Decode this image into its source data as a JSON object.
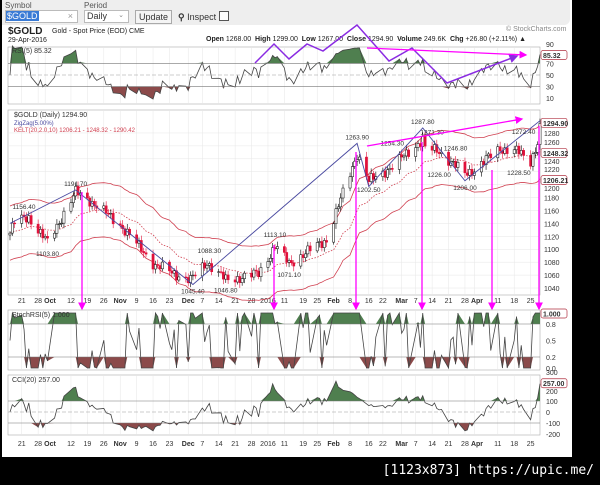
{
  "toolbar": {
    "symbol_label": "Symbol",
    "symbol_value": "$GOLD",
    "period_label": "Period",
    "period_value": "Daily",
    "update_label": "Update",
    "inspect_label": "Inspect",
    "clear_icon": "×"
  },
  "header": {
    "symbol": "$GOLD",
    "name": "Gold - Spot Price (EOD) CME",
    "date": "29-Apr-2016",
    "brand": "© StockCharts.com",
    "open_label": "Open",
    "open": "1268.00",
    "high_label": "High",
    "high": "1299.00",
    "low_label": "Low",
    "low": "1267.00",
    "close_label": "Close",
    "close": "1294.90",
    "volume_label": "Volume",
    "volume": "249.6K",
    "chg_label": "Chg",
    "chg": "+26.80 (+2.11%)"
  },
  "chart_data": {
    "type": "candlestick",
    "period": [
      "2015-09-16",
      "2016-04-29"
    ],
    "price_panel": {
      "legend": [
        "$GOLD (Daily) 1294.90",
        "ZigZag(5.00%)",
        "KELT(20,2.0,10) 1206.21 - 1248.32 - 1290.42"
      ],
      "ylim": [
        1030,
        1300
      ],
      "yticks": [
        1040,
        1060,
        1080,
        1100,
        1120,
        1140,
        1160,
        1180,
        1200,
        1220,
        1240,
        1260,
        1280
      ],
      "value_tags": [
        "1294.90",
        "1248.32",
        "1206.21"
      ],
      "price_pivots": [
        [
          "2015-09-16",
          1125
        ],
        [
          "2015-09-18",
          1142
        ],
        [
          "2015-09-24",
          1150
        ],
        [
          "2015-10-02",
          1110
        ],
        [
          "2015-10-14",
          1188
        ],
        [
          "2015-10-20",
          1176
        ],
        [
          "2015-11-02",
          1138
        ],
        [
          "2015-11-17",
          1075
        ],
        [
          "2015-12-02",
          1052
        ],
        [
          "2015-12-09",
          1080
        ],
        [
          "2015-12-17",
          1052
        ],
        [
          "2015-12-31",
          1062
        ],
        [
          "2016-01-07",
          1105
        ],
        [
          "2016-01-13",
          1078
        ],
        [
          "2016-01-29",
          1115
        ],
        [
          "2016-02-11",
          1248
        ],
        [
          "2016-02-16",
          1205
        ],
        [
          "2016-02-26",
          1228
        ],
        [
          "2016-03-10",
          1270
        ],
        [
          "2016-03-11",
          1256
        ],
        [
          "2016-03-17",
          1252
        ],
        [
          "2016-03-28",
          1216
        ],
        [
          "2016-04-01",
          1224
        ],
        [
          "2016-04-12",
          1256
        ],
        [
          "2016-04-19",
          1252
        ],
        [
          "2016-04-25",
          1236
        ],
        [
          "2016-04-28",
          1266
        ],
        [
          "2016-04-29",
          1294.9
        ]
      ],
      "zigzag": [
        [
          "2015-09-16",
          1140
        ],
        [
          "2015-10-14",
          1191.7
        ],
        [
          "2015-12-03",
          1045.4
        ],
        [
          "2016-02-11",
          1263.9
        ],
        [
          "2016-02-16",
          1197
        ],
        [
          "2016-03-10",
          1287.8
        ],
        [
          "2016-03-28",
          1206
        ],
        [
          "2016-04-29",
          1299
        ]
      ],
      "annotations": [
        [
          "2015-09-18",
          1156.4,
          "1156.40"
        ],
        [
          "2015-10-14",
          1191.7,
          "1191.70"
        ],
        [
          "2015-10-02",
          1103.8,
          "1103.80"
        ],
        [
          "2015-12-10",
          1088.3,
          "1088.30"
        ],
        [
          "2015-12-03",
          1045.4,
          "1045.40"
        ],
        [
          "2015-12-17",
          1046.8,
          "1046.80"
        ],
        [
          "2016-01-07",
          1113.1,
          "1113.10"
        ],
        [
          "2016-01-13",
          1071.1,
          "1071.10"
        ],
        [
          "2016-02-11",
          1263.9,
          "1263.90"
        ],
        [
          "2016-02-26",
          1254.3,
          "1254.30"
        ],
        [
          "2016-02-16",
          1202.5,
          "1202.50"
        ],
        [
          "2016-03-10",
          1287.8,
          "1287.80"
        ],
        [
          "2016-03-14",
          1271.3,
          "1271.30"
        ],
        [
          "2016-03-17",
          1226.0,
          "1226.00"
        ],
        [
          "2016-03-24",
          1246.8,
          "1246.80"
        ],
        [
          "2016-03-28",
          1206.0,
          "1206.00"
        ],
        [
          "2016-04-22",
          1272.4,
          "1272.40"
        ],
        [
          "2016-04-20",
          1228.5,
          "1228.50"
        ]
      ]
    },
    "rsi_panel": {
      "legend": "RSI(5) 85.32",
      "value_tag": "85.32",
      "ylim": [
        0,
        100
      ],
      "yticks": [
        10,
        30,
        50,
        70,
        90
      ],
      "levels": [
        30,
        70
      ]
    },
    "stochrsi_panel": {
      "legend": "StochRSI(5) 1.000",
      "value_tag": "1.000",
      "ylim": [
        0,
        1
      ],
      "yticks": [
        "0.0",
        "0.2",
        "0.5",
        "0.8"
      ]
    },
    "cci_panel": {
      "legend": "CCI(20) 257.00",
      "value_tag": "257.00",
      "ylim": [
        -250,
        300
      ],
      "yticks": [
        "-200",
        "-100",
        "0",
        "100",
        "200",
        "300"
      ]
    },
    "xticks": [
      [
        "2015-09-21",
        "21"
      ],
      [
        "2015-09-28",
        "28"
      ],
      [
        "2015-10-01",
        "Oct"
      ],
      [
        "2015-10-12",
        "12"
      ],
      [
        "2015-10-19",
        "19"
      ],
      [
        "2015-10-26",
        "26"
      ],
      [
        "2015-11-02",
        "Nov"
      ],
      [
        "2015-11-09",
        "9"
      ],
      [
        "2015-11-16",
        "16"
      ],
      [
        "2015-11-23",
        "23"
      ],
      [
        "2015-12-01",
        "Dec"
      ],
      [
        "2015-12-07",
        "7"
      ],
      [
        "2015-12-14",
        "14"
      ],
      [
        "2015-12-21",
        "21"
      ],
      [
        "2015-12-28",
        "28"
      ],
      [
        "2016-01-04",
        "2016"
      ],
      [
        "2016-01-11",
        "11"
      ],
      [
        "2016-01-19",
        "19"
      ],
      [
        "2016-01-25",
        "25"
      ],
      [
        "2016-02-01",
        "Feb"
      ],
      [
        "2016-02-08",
        "8"
      ],
      [
        "2016-02-16",
        "16"
      ],
      [
        "2016-02-22",
        "22"
      ],
      [
        "2016-03-01",
        "Mar"
      ],
      [
        "2016-03-07",
        "7"
      ],
      [
        "2016-03-14",
        "14"
      ],
      [
        "2016-03-21",
        "21"
      ],
      [
        "2016-03-28",
        "28"
      ],
      [
        "2016-04-01",
        "Apr"
      ],
      [
        "2016-04-11",
        "11"
      ],
      [
        "2016-04-18",
        "18"
      ],
      [
        "2016-04-25",
        "25"
      ]
    ],
    "colors": {
      "up": "#000000",
      "down": "#e0103a",
      "keltner": "#d04050",
      "zigzag": "#4a4aa0",
      "indicator_fill": "#4f7f4f",
      "oversold_fill": "#8b4a4a",
      "drawn_lines": "#8a2be2",
      "drawn_arrows": "#ff00ff"
    }
  },
  "footer": "[1123x873] https://upic.me/"
}
